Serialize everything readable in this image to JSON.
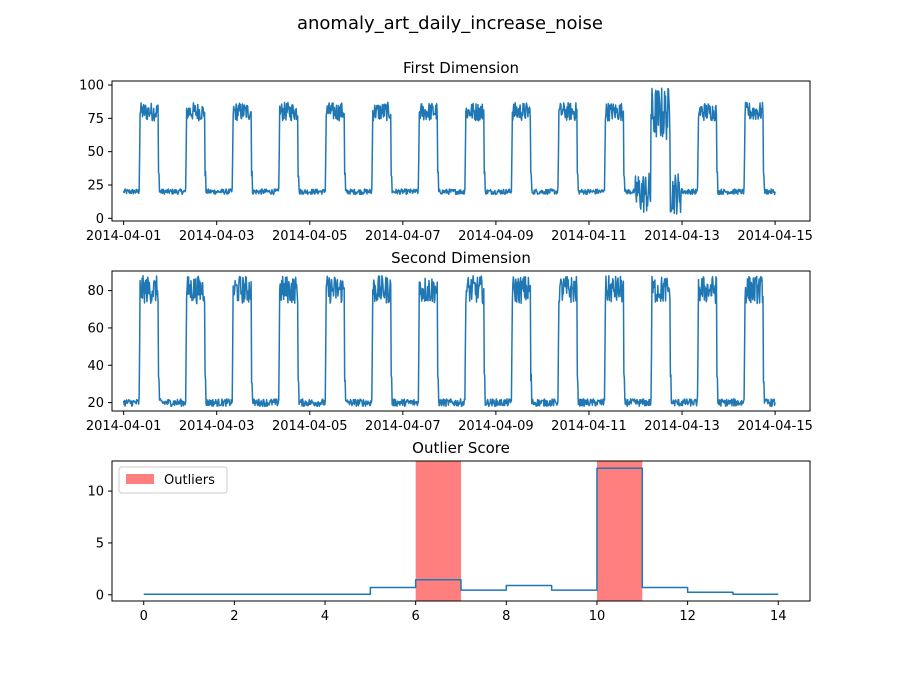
{
  "figure": {
    "title": "anomaly_art_daily_increase_noise"
  },
  "chart_data": [
    {
      "type": "line",
      "title": "First Dimension",
      "xlabel": "",
      "ylabel": "",
      "x_range": [
        "2014-04-01",
        "2014-04-15"
      ],
      "xlim": [
        -0.25,
        14.75
      ],
      "ylim": [
        -2,
        103
      ],
      "xticks": [
        0,
        2,
        4,
        6,
        8,
        10,
        12,
        14
      ],
      "xtick_labels": [
        "2014-04-01",
        "2014-04-03",
        "2014-04-05",
        "2014-04-07",
        "2014-04-09",
        "2014-04-11",
        "2014-04-13",
        "2014-04-15"
      ],
      "yticks": [
        0,
        25,
        50,
        75,
        100
      ],
      "ytick_labels": [
        "0",
        "25",
        "50",
        "75",
        "100"
      ],
      "pattern": {
        "low_level": 20,
        "high_level_min": 73,
        "high_level_max": 87,
        "high_start_hour": 8,
        "high_end_hour": 18
      },
      "anomaly": {
        "date": "2014-04-12",
        "low_range": [
          3,
          35
        ],
        "high_range": [
          58,
          99
        ]
      },
      "series": [
        {
          "color": "#1f77b4"
        }
      ]
    },
    {
      "type": "line",
      "title": "Second Dimension",
      "xlabel": "",
      "ylabel": "",
      "x_range": [
        "2014-04-01",
        "2014-04-15"
      ],
      "xlim": [
        -0.25,
        14.75
      ],
      "ylim": [
        15.5,
        90.5
      ],
      "xticks": [
        0,
        2,
        4,
        6,
        8,
        10,
        12,
        14
      ],
      "xtick_labels": [
        "2014-04-01",
        "2014-04-03",
        "2014-04-05",
        "2014-04-07",
        "2014-04-09",
        "2014-04-11",
        "2014-04-13",
        "2014-04-15"
      ],
      "yticks": [
        20,
        40,
        60,
        80
      ],
      "ytick_labels": [
        "20",
        "40",
        "60",
        "80"
      ],
      "pattern": {
        "low_level": 20,
        "high_level_min": 73,
        "high_level_max": 88,
        "high_start_hour": 8,
        "high_end_hour": 18
      },
      "series": [
        {
          "color": "#1f77b4"
        }
      ]
    },
    {
      "type": "line",
      "title": "Outlier Score",
      "xlabel": "",
      "ylabel": "",
      "xlim": [
        -0.7,
        14.7
      ],
      "ylim": [
        -0.6,
        12.9
      ],
      "xticks": [
        0,
        2,
        4,
        6,
        8,
        10,
        12,
        14
      ],
      "xtick_labels": [
        "0",
        "2",
        "4",
        "6",
        "8",
        "10",
        "12",
        "14"
      ],
      "yticks": [
        0,
        5,
        10
      ],
      "ytick_labels": [
        "0",
        "5",
        "10"
      ],
      "step": {
        "x": [
          0,
          1,
          2,
          3,
          4,
          5,
          6,
          7,
          8,
          9,
          10,
          11,
          12,
          13,
          14
        ],
        "y": [
          0.05,
          0.05,
          0.05,
          0.05,
          0.05,
          0.7,
          1.45,
          0.45,
          0.9,
          0.45,
          12.2,
          0.7,
          0.25,
          0.05,
          0.05
        ]
      },
      "outlier_spans": [
        [
          6,
          7
        ],
        [
          10,
          11
        ]
      ],
      "legend": {
        "label": "Outliers",
        "placement": "upper-left",
        "color": "#ff7f7f"
      },
      "series": [
        {
          "color": "#1f77b4"
        }
      ]
    }
  ]
}
